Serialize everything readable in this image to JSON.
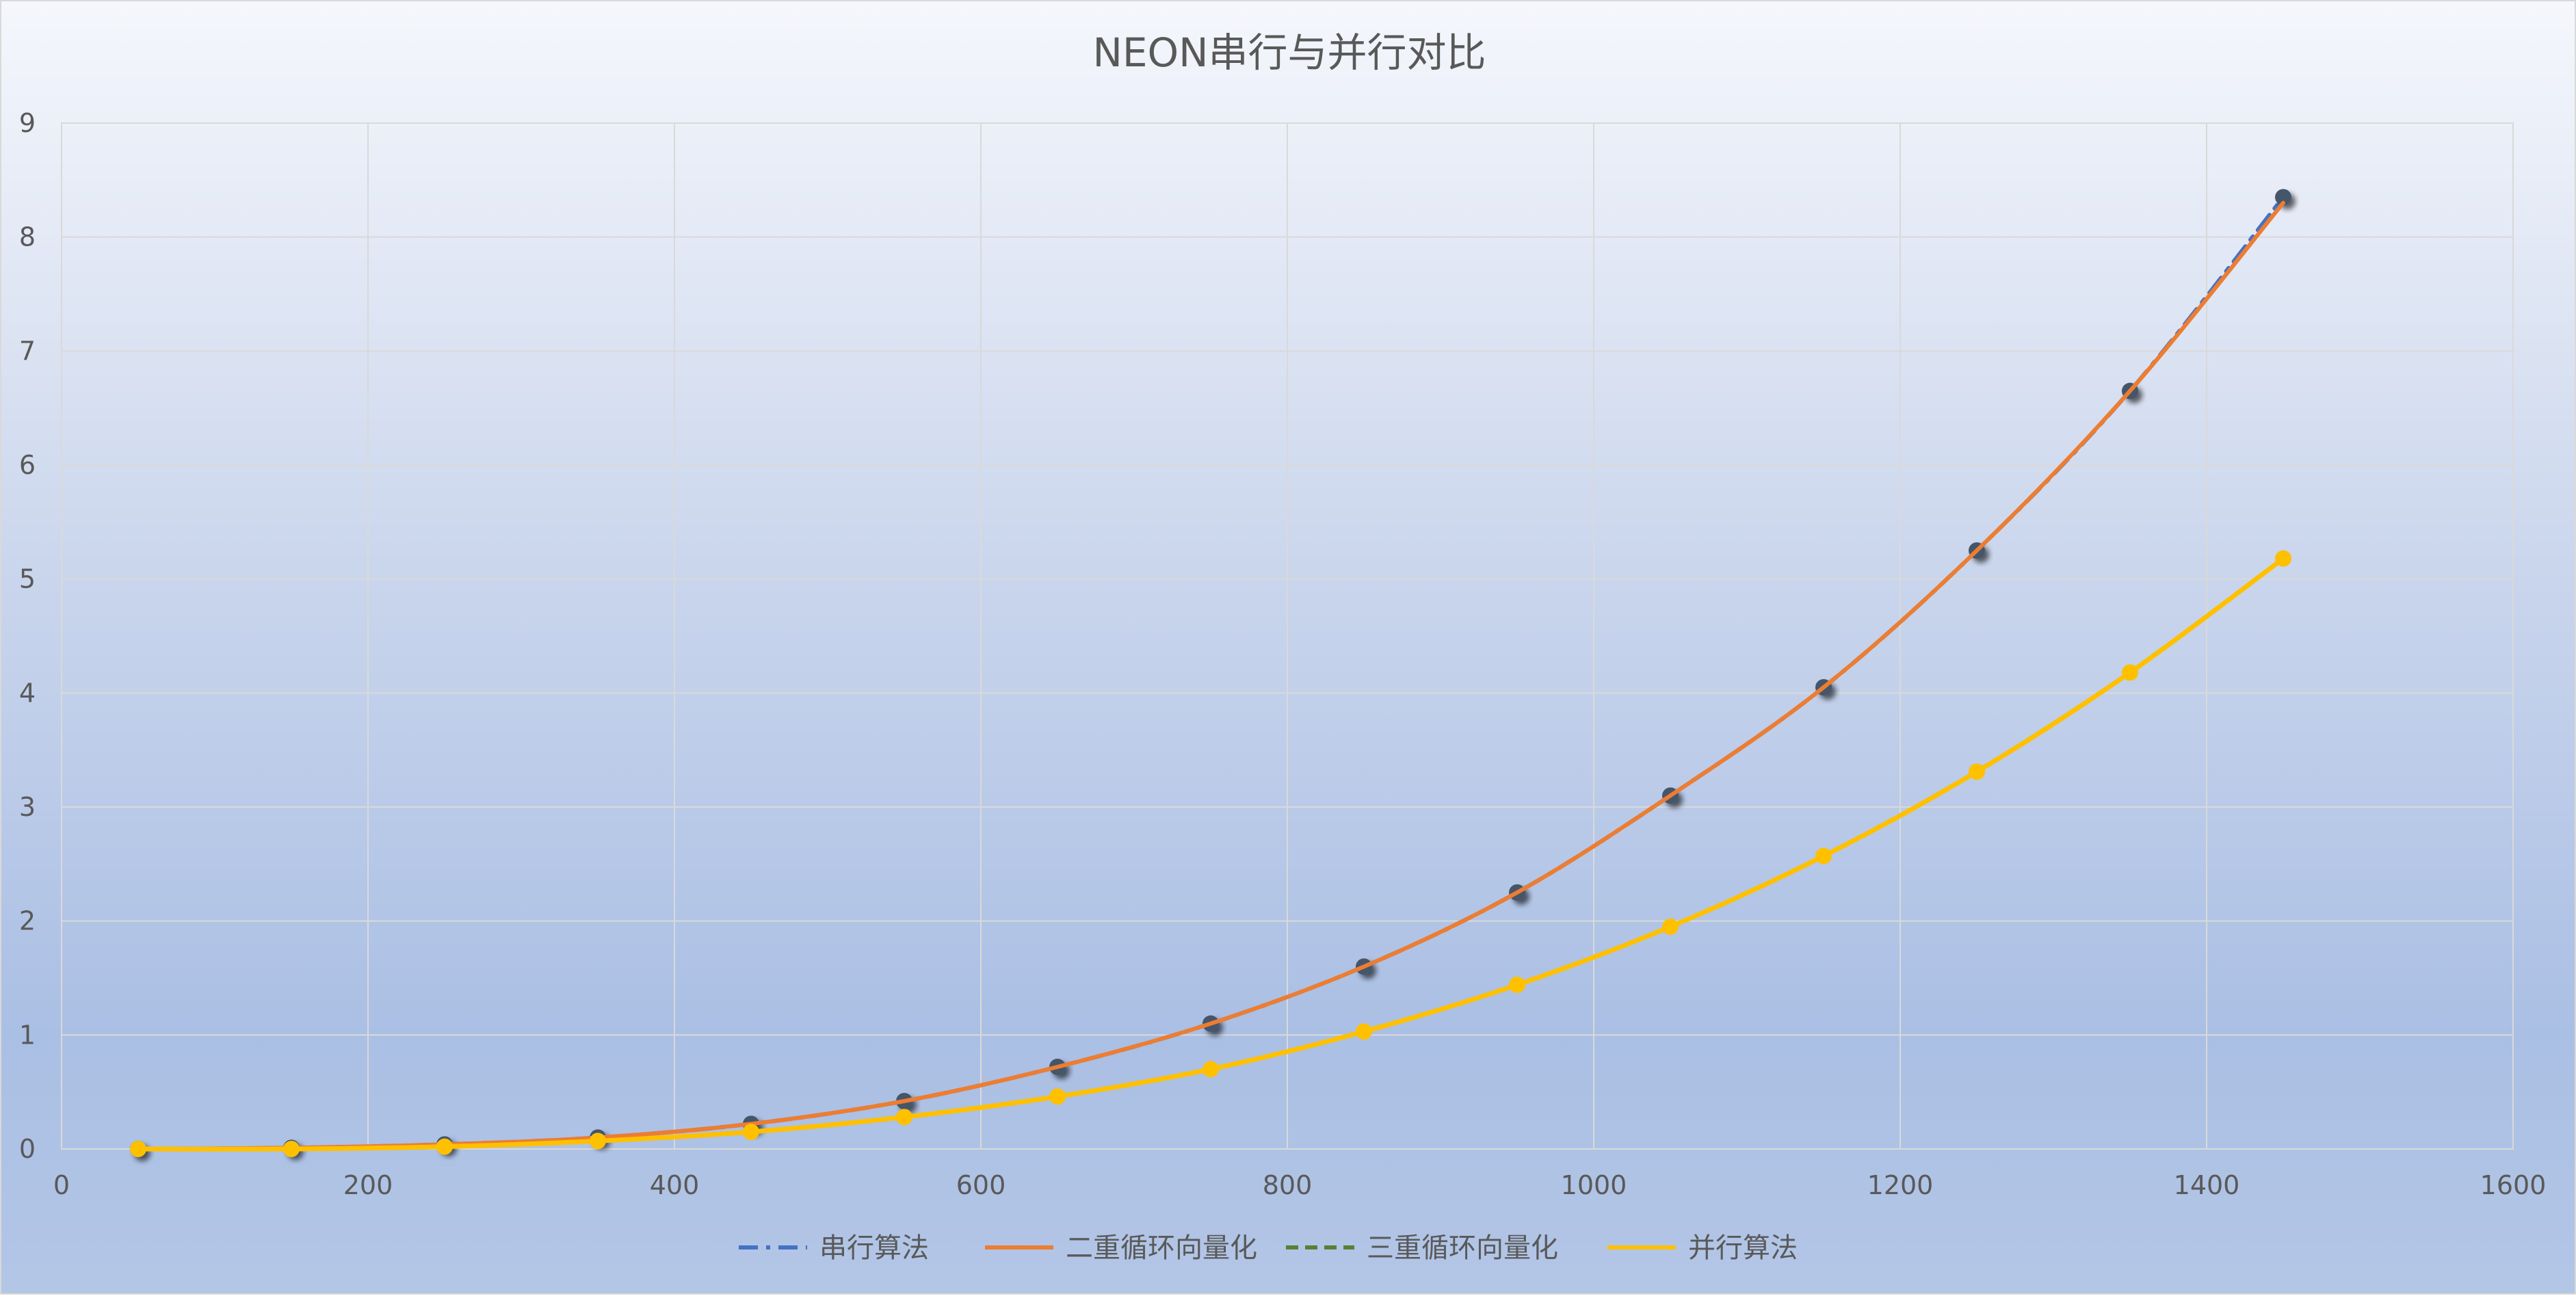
{
  "chart_data": {
    "type": "scatter",
    "title": "NEON串行与并行对比",
    "xlabel": "",
    "ylabel": "",
    "xlim": [
      0,
      1600
    ],
    "ylim": [
      0,
      9
    ],
    "x_ticks": [
      0,
      200,
      400,
      600,
      800,
      1000,
      1200,
      1400,
      1600
    ],
    "y_ticks": [
      0,
      1,
      2,
      3,
      4,
      5,
      6,
      7,
      8,
      9
    ],
    "grid": true,
    "legend_position": "bottom",
    "series": [
      {
        "name": "串行算法",
        "color": "#4472c4",
        "line_style": "dash-dot",
        "x": [
          50,
          150,
          250,
          350,
          450,
          550,
          650,
          750,
          850,
          950,
          1050,
          1150,
          1250,
          1350,
          1450
        ],
        "y": [
          0.0,
          0.01,
          0.04,
          0.1,
          0.22,
          0.42,
          0.72,
          1.1,
          1.6,
          2.25,
          3.1,
          4.05,
          5.25,
          6.65,
          8.35
        ]
      },
      {
        "name": "二重循环向量化",
        "color": "#ed7d31",
        "line_style": "solid",
        "x": [
          50,
          150,
          250,
          350,
          450,
          550,
          650,
          750,
          850,
          950,
          1050,
          1150,
          1250,
          1350,
          1450
        ],
        "y": [
          0.0,
          0.01,
          0.04,
          0.1,
          0.22,
          0.42,
          0.72,
          1.1,
          1.6,
          2.25,
          3.1,
          4.05,
          5.25,
          6.65,
          8.3
        ]
      },
      {
        "name": "三重循环向量化",
        "color": "#548235",
        "line_style": "dashed",
        "x": [
          50,
          150,
          250,
          350,
          450,
          550,
          650,
          750,
          850,
          950,
          1050,
          1150,
          1250,
          1350,
          1450
        ],
        "y": [
          0.0,
          0.0,
          0.02,
          0.07,
          0.15,
          0.28,
          0.46,
          0.7,
          1.03,
          1.44,
          1.95,
          2.57,
          3.31,
          4.18,
          5.18
        ]
      },
      {
        "name": "并行算法",
        "color": "#ffc000",
        "line_style": "solid",
        "x": [
          50,
          150,
          250,
          350,
          450,
          550,
          650,
          750,
          850,
          950,
          1050,
          1150,
          1250,
          1350,
          1450
        ],
        "y": [
          0.0,
          0.0,
          0.02,
          0.07,
          0.15,
          0.28,
          0.46,
          0.7,
          1.03,
          1.44,
          1.95,
          2.57,
          3.31,
          4.18,
          5.18
        ]
      }
    ]
  }
}
